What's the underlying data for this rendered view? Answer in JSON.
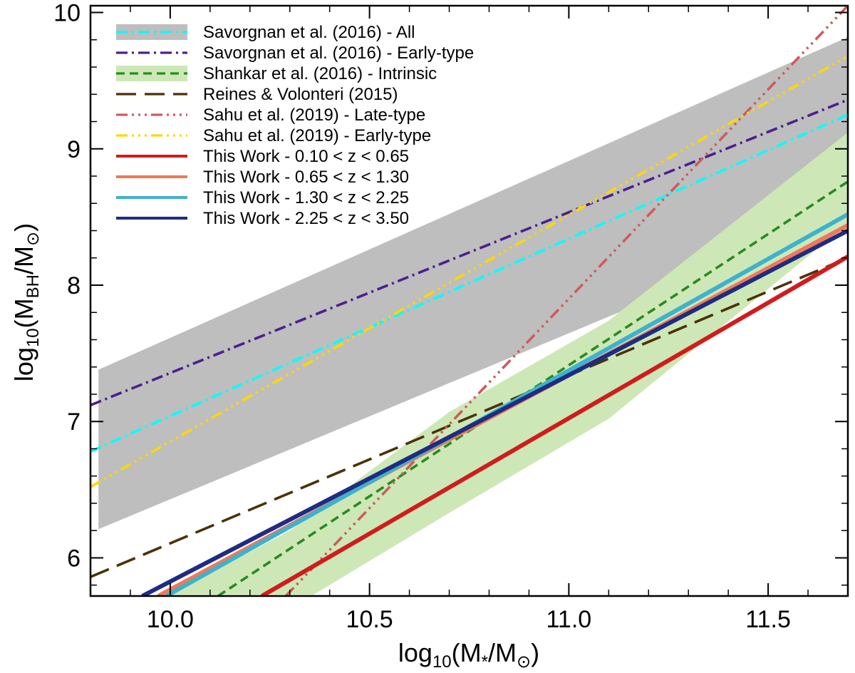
{
  "chart_data": {
    "type": "line",
    "xlabel_parts": [
      "log",
      "10",
      "(M",
      "*",
      "/M",
      "⊙",
      ")"
    ],
    "ylabel_parts": [
      "log",
      "10",
      "(M",
      "BH",
      "/M",
      "⊙",
      ")"
    ],
    "xlim": [
      9.8,
      11.7
    ],
    "ylim": [
      5.72,
      10.05
    ],
    "x_ticks": [
      "10.0",
      "10.5",
      "11.0",
      "11.5"
    ],
    "y_ticks": [
      "6",
      "7",
      "8",
      "9",
      "10"
    ],
    "bands": [
      {
        "name": "Savorgnan et al. (2016) - All",
        "color": "#bebebe",
        "upper": [
          [
            9.82,
            7.38
          ],
          [
            11.7,
            9.82
          ]
        ],
        "lower": [
          [
            9.82,
            6.21
          ],
          [
            11.7,
            8.5
          ]
        ]
      },
      {
        "name": "Shankar et al. (2016) - Intrinsic",
        "color": "#cde8b6",
        "upper": [
          [
            10.0,
            5.73
          ],
          [
            10.3,
            6.2
          ],
          [
            10.7,
            7.07
          ],
          [
            11.1,
            7.74
          ],
          [
            11.7,
            9.12
          ]
        ],
        "lower": [
          [
            10.36,
            5.73
          ],
          [
            10.7,
            6.33
          ],
          [
            11.1,
            7.02
          ],
          [
            11.7,
            8.45
          ]
        ]
      }
    ],
    "series": [
      {
        "name": "Savorgnan et al. (2016) - All",
        "color": "#00ffff",
        "dash": "dashdot",
        "x": [
          9.8,
          11.7
        ],
        "y": [
          6.78,
          9.25
        ]
      },
      {
        "name": "Savorgnan et al. (2016) - Early-type",
        "color": "#4b2090",
        "dash": "dashdot",
        "x": [
          9.8,
          11.7
        ],
        "y": [
          7.12,
          9.36
        ]
      },
      {
        "name": "Shankar et al. (2016) - Intrinsic",
        "color": "#2a8a23",
        "dash": "dashed",
        "x": [
          10.12,
          11.7
        ],
        "y": [
          5.72,
          8.76
        ]
      },
      {
        "name": "Reines & Volonteri (2015)",
        "color": "#4b3208",
        "dash": "longdash",
        "x": [
          9.8,
          11.7
        ],
        "y": [
          5.86,
          8.2
        ]
      },
      {
        "name": "Sahu et al. (2019) - Late-type",
        "color": "#cd5c5c",
        "dash": "dashdotdotdot",
        "x": [
          10.29,
          11.7
        ],
        "y": [
          5.72,
          10.05
        ]
      },
      {
        "name": "Sahu et al. (2019) - Early-type",
        "color": "#ffd700",
        "dash": "dashdotdotdot",
        "x": [
          9.8,
          11.7
        ],
        "y": [
          6.52,
          9.68
        ]
      },
      {
        "name": "This Work - 0.10 < z < 0.65",
        "color": "#d01c1c",
        "dash": "solid",
        "x": [
          10.23,
          11.7
        ],
        "y": [
          5.72,
          8.21
        ]
      },
      {
        "name": "This Work - 0.65 < z < 1.30",
        "color": "#f0785a",
        "dash": "solid",
        "x": [
          9.97,
          11.7
        ],
        "y": [
          5.72,
          8.44
        ]
      },
      {
        "name": "This Work - 1.30 < z < 2.25",
        "color": "#3eb2cc",
        "dash": "solid",
        "x": [
          9.99,
          11.7
        ],
        "y": [
          5.72,
          8.52
        ]
      },
      {
        "name": "This Work - 2.25 < z < 3.50",
        "color": "#1e2c82",
        "dash": "solid",
        "x": [
          9.93,
          11.7
        ],
        "y": [
          5.72,
          8.4
        ]
      }
    ],
    "legend": [
      {
        "label": "Savorgnan et al. (2016) - All",
        "color": "#00ffff",
        "dash": "dashdot",
        "band": "#bebebe"
      },
      {
        "label": "Savorgnan et al. (2016) - Early-type",
        "color": "#4b2090",
        "dash": "dashdot",
        "band": null
      },
      {
        "label": "Shankar et al. (2016) - Intrinsic",
        "color": "#2a8a23",
        "dash": "dashed",
        "band": "#cde8b6"
      },
      {
        "label": "Reines & Volonteri (2015)",
        "color": "#4b3208",
        "dash": "longdash",
        "band": null
      },
      {
        "label": "Sahu et al. (2019) - Late-type",
        "color": "#cd5c5c",
        "dash": "dashdotdotdot",
        "band": null
      },
      {
        "label": "Sahu et al. (2019) - Early-type",
        "color": "#ffd700",
        "dash": "dashdotdotdot",
        "band": null
      },
      {
        "label": "This Work - 0.10 < z < 0.65",
        "color": "#d01c1c",
        "dash": "solid",
        "band": null
      },
      {
        "label": "This Work - 0.65 < z < 1.30",
        "color": "#f0785a",
        "dash": "solid",
        "band": null
      },
      {
        "label": "This Work - 1.30 < z < 2.25",
        "color": "#3eb2cc",
        "dash": "solid",
        "band": null
      },
      {
        "label": "This Work - 2.25 < z < 3.50",
        "color": "#1e2c82",
        "dash": "solid",
        "band": null
      }
    ]
  }
}
